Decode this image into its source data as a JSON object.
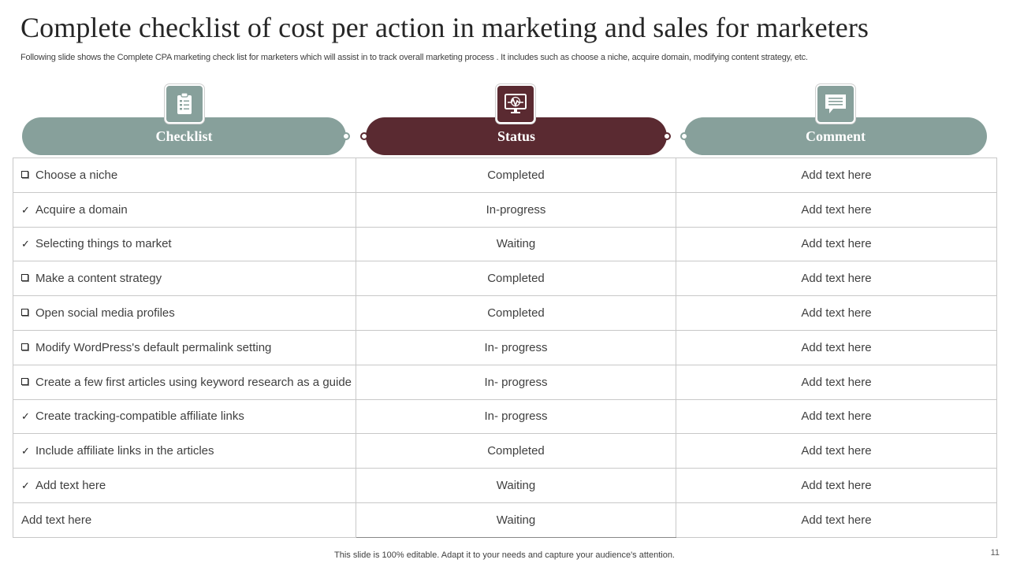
{
  "title": "Complete checklist of cost per action in marketing and sales for marketers",
  "subtitle": "Following slide shows the Complete CPA marketing check list for marketers which will assist in to track overall marketing process . It includes such as choose a niche, acquire domain, modifying content strategy, etc.",
  "headers": {
    "checklist": "Checklist",
    "status": "Status",
    "comment": "Comment"
  },
  "icons": {
    "checklist": "clipboard-icon",
    "status": "monitor-chart-icon",
    "comment": "speech-bubble-icon"
  },
  "colors": {
    "gray": "#87a09b",
    "maroon": "#5a2a31"
  },
  "rows": [
    {
      "mark": "box",
      "item": "Choose a niche",
      "status": "Completed",
      "comment": "Add text here"
    },
    {
      "mark": "check",
      "item": "Acquire a domain",
      "status": "In-progress",
      "comment": "Add text here"
    },
    {
      "mark": "check",
      "item": "Selecting things to market",
      "status": "Waiting",
      "comment": "Add text here"
    },
    {
      "mark": "box",
      "item": "Make  a content strategy",
      "status": "Completed",
      "comment": "Add text here"
    },
    {
      "mark": "box",
      "item": "Open social media profiles",
      "status": "Completed",
      "comment": "Add text here"
    },
    {
      "mark": "box",
      "item": "Modify  WordPress's default permalink setting",
      "status": "In- progress",
      "comment": "Add text here"
    },
    {
      "mark": "box",
      "item": "Create a few first articles using keyword research as a guide",
      "status": "In- progress",
      "comment": "Add text here"
    },
    {
      "mark": "check",
      "item": "Create tracking-compatible affiliate  links",
      "status": "In- progress",
      "comment": "Add text here"
    },
    {
      "mark": "check",
      "item": "Include affiliate  links in the articles",
      "status": "Completed",
      "comment": "Add text here"
    },
    {
      "mark": "check",
      "item": "Add text here",
      "status": "Waiting",
      "comment": "Add text here"
    },
    {
      "mark": "none",
      "item": "Add text here",
      "status": "Waiting",
      "comment": "Add text here"
    }
  ],
  "footer": "This slide is 100% editable. Adapt it to your needs and capture your audience's attention.",
  "page_number": "11"
}
